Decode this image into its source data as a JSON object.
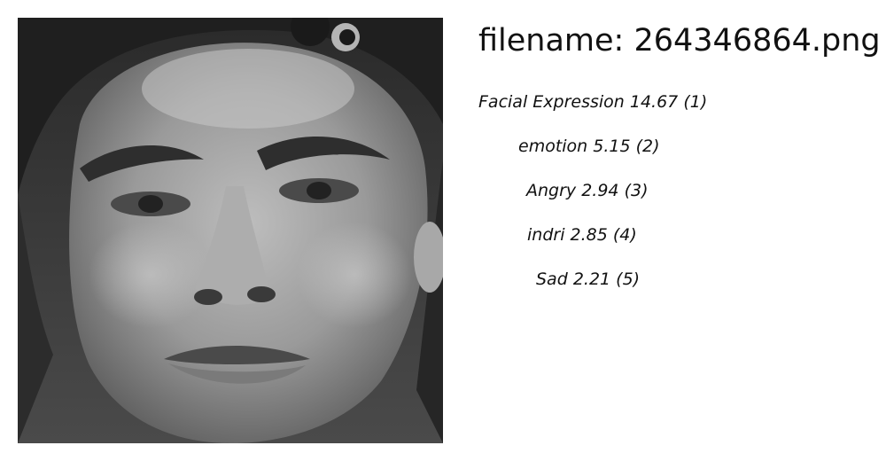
{
  "image": {
    "subject": "grayscale-face-photo"
  },
  "header": {
    "filename_text": "filename: 264346864.png"
  },
  "predictions": [
    {
      "label": "Facial Expression",
      "score": "14.67",
      "rank": "(1)"
    },
    {
      "label": "emotion",
      "score": "5.15",
      "rank": "(2)"
    },
    {
      "label": "Angry",
      "score": "2.94",
      "rank": "(3)"
    },
    {
      "label": "indri",
      "score": "2.85",
      "rank": "(4)"
    },
    {
      "label": "Sad",
      "score": "2.21",
      "rank": "(5)"
    }
  ]
}
